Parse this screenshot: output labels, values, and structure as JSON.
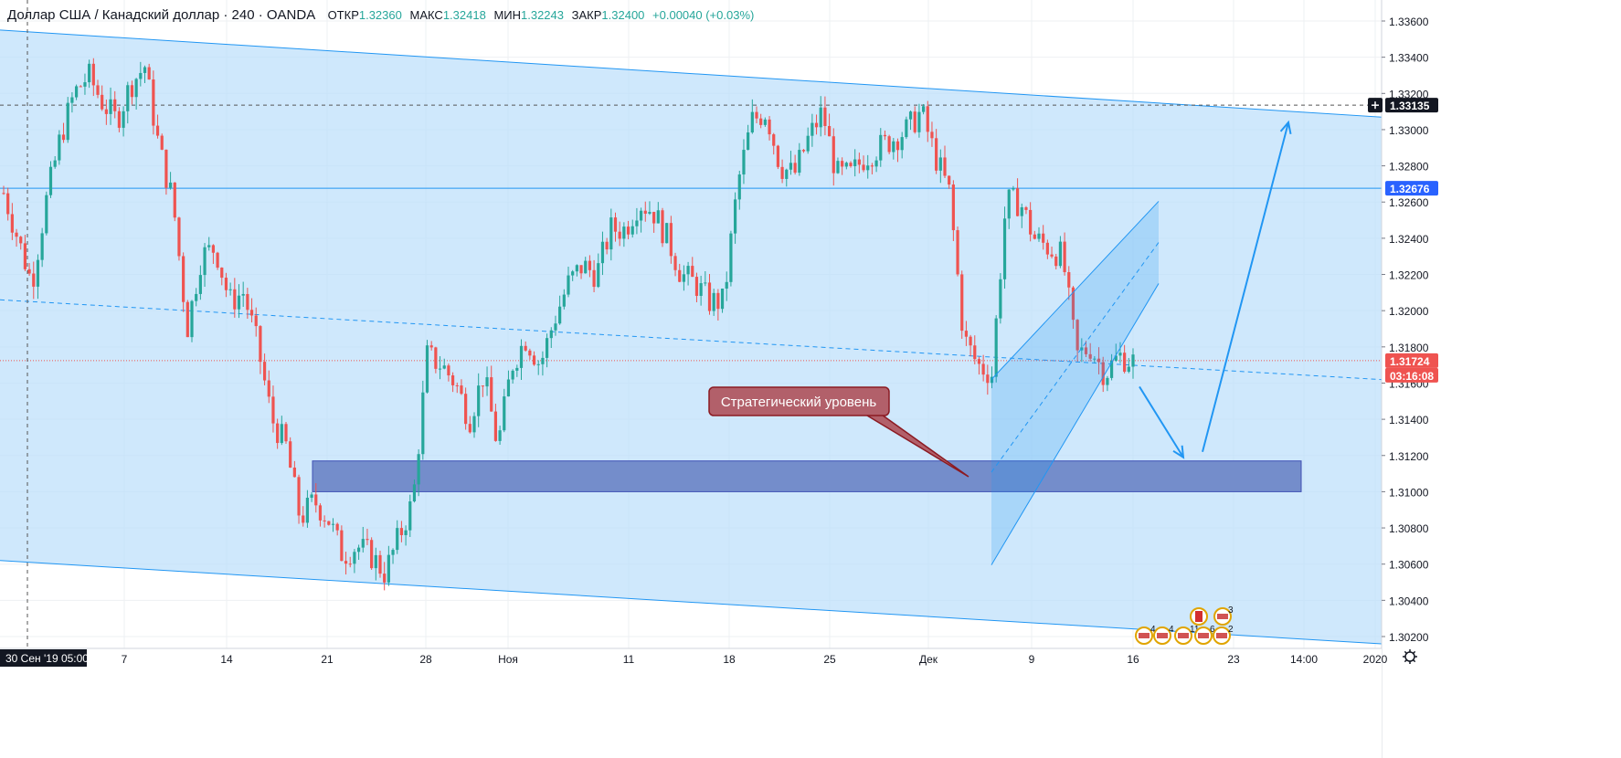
{
  "header": {
    "symbol_title": "Доллар США / Канадский доллар · 240 · OANDA",
    "ohlc": [
      {
        "key": "ОТКР",
        "value": "1.32360"
      },
      {
        "key": "МАКС",
        "value": "1.32418"
      },
      {
        "key": "МИН",
        "value": "1.32243"
      },
      {
        "key": "ЗАКР",
        "value": "1.32400"
      }
    ],
    "change": "+0.00040 (+0.03%)"
  },
  "price_axis": {
    "ticks": [
      "1.33600",
      "1.33400",
      "1.33200",
      "1.33000",
      "1.32800",
      "1.32600",
      "1.32400",
      "1.32200",
      "1.32000",
      "1.31800",
      "1.31600",
      "1.31400",
      "1.31200",
      "1.31000",
      "1.30800",
      "1.30600",
      "1.30400",
      "1.30200"
    ],
    "tags": [
      {
        "value": 1.33135,
        "label": "1.33135",
        "color": "#131722"
      },
      {
        "value": 1.32676,
        "label": "1.32676",
        "color": "#2962ff"
      },
      {
        "value": 1.31724,
        "label": "1.31724",
        "color": "#ef5350"
      }
    ],
    "countdown": "03:16:08",
    "crosshair_icon": "crosshair-plus-icon"
  },
  "time_axis": {
    "labels": [
      {
        "key": "d7",
        "text": "7"
      },
      {
        "key": "d14",
        "text": "14"
      },
      {
        "key": "d21",
        "text": "21"
      },
      {
        "key": "d28",
        "text": "28"
      },
      {
        "key": "nov",
        "text": "Ноя"
      },
      {
        "key": "d11",
        "text": "11"
      },
      {
        "key": "d18",
        "text": "18"
      },
      {
        "key": "d25",
        "text": "25"
      },
      {
        "key": "dec",
        "text": "Дек"
      },
      {
        "key": "d9",
        "text": "9"
      },
      {
        "key": "d16",
        "text": "16"
      },
      {
        "key": "d23",
        "text": "23"
      },
      {
        "key": "t1400",
        "text": "14:00"
      },
      {
        "key": "y2020",
        "text": "2020"
      }
    ],
    "crosshair_label": "30 Сен '19   05:00",
    "settings_icon": "gear-icon"
  },
  "annotation": {
    "text": "Стратегический уровень"
  },
  "events": {
    "counts": [
      "4",
      "4",
      "11",
      "6",
      "2",
      "3"
    ],
    "icons": [
      "us-flag-icon",
      "us-flag-icon",
      "ca-flag-icon",
      "us-flag-icon",
      "us-flag-icon",
      "ca-flag-icon",
      "us-flag-icon"
    ]
  },
  "colors": {
    "up": "#26a69a",
    "down": "#ef5350",
    "channel_fill": "#bbdefb",
    "channel_line": "#2196f3",
    "zone_fill": "#6f88c8",
    "callout_fill": "#b2606a",
    "callout_border": "#8b1a22"
  },
  "chart_data": {
    "type": "candlestick",
    "symbol": "USDCAD",
    "timeframe": "240",
    "ylim": [
      1.3015,
      1.3368
    ],
    "levels": [
      1.33135,
      1.32676,
      1.31724
    ],
    "zone": [
      1.31,
      1.3117
    ],
    "path": [
      [
        "d30s",
        1.3265
      ],
      [
        "d2",
        1.324
      ],
      [
        "d3",
        1.3215
      ],
      [
        "d4",
        1.326
      ],
      [
        "d5",
        1.3295
      ],
      [
        "d6",
        1.332
      ],
      [
        "d7",
        1.333
      ],
      [
        "d8",
        1.3315
      ],
      [
        "d9",
        1.3305
      ],
      [
        "d10",
        1.3325
      ],
      [
        "d11",
        1.3335
      ],
      [
        "d12",
        1.329
      ],
      [
        "d13",
        1.326
      ],
      [
        "d14",
        1.319
      ],
      [
        "d15",
        1.323
      ],
      [
        "d16",
        1.3235
      ],
      [
        "d17",
        1.3205
      ],
      [
        "d18",
        1.321
      ],
      [
        "d19",
        1.318
      ],
      [
        "d20",
        1.314
      ],
      [
        "d21",
        1.3125
      ],
      [
        "d22",
        1.3085
      ],
      [
        "d23",
        1.3095
      ],
      [
        "d24",
        1.3085
      ],
      [
        "d25",
        1.3065
      ],
      [
        "d26",
        1.307
      ],
      [
        "d27",
        1.3065
      ],
      [
        "d28",
        1.3055
      ],
      [
        "d29",
        1.3075
      ],
      [
        "d30",
        1.3095
      ],
      [
        "d31",
        1.3175
      ],
      [
        "d32",
        1.317
      ],
      [
        "d33",
        1.316
      ],
      [
        "d34",
        1.314
      ],
      [
        "d35",
        1.3165
      ],
      [
        "d36",
        1.3125
      ],
      [
        "d37",
        1.317
      ],
      [
        "d38",
        1.3185
      ],
      [
        "d39",
        1.317
      ],
      [
        "d40",
        1.3195
      ],
      [
        "d41",
        1.3215
      ],
      [
        "d42",
        1.3225
      ],
      [
        "d43",
        1.322
      ],
      [
        "d44",
        1.3245
      ],
      [
        "d45",
        1.3245
      ],
      [
        "d46",
        1.326
      ],
      [
        "d47",
        1.3255
      ],
      [
        "d48",
        1.324
      ],
      [
        "d49",
        1.322
      ],
      [
        "d50",
        1.3215
      ],
      [
        "d51",
        1.3205
      ],
      [
        "d52",
        1.3205
      ],
      [
        "d53",
        1.327
      ],
      [
        "d54",
        1.3305
      ],
      [
        "d55",
        1.331
      ],
      [
        "d56",
        1.328
      ],
      [
        "d57",
        1.3275
      ],
      [
        "d58",
        1.3295
      ],
      [
        "d59",
        1.331
      ],
      [
        "d60",
        1.3275
      ],
      [
        "d61",
        1.3275
      ],
      [
        "d62",
        1.3285
      ],
      [
        "d63",
        1.329
      ],
      [
        "d64",
        1.3295
      ],
      [
        "d65",
        1.33
      ],
      [
        "d66",
        1.331
      ],
      [
        "d67",
        1.3285
      ],
      [
        "d68",
        1.3265
      ],
      [
        "d69",
        1.3185
      ],
      [
        "d70",
        1.317
      ],
      [
        "d71",
        1.3165
      ],
      [
        "d72",
        1.326
      ],
      [
        "d73",
        1.326
      ],
      [
        "d74",
        1.324
      ],
      [
        "d75",
        1.3235
      ],
      [
        "d76",
        1.323
      ],
      [
        "d77",
        1.3175
      ],
      [
        "d78",
        1.318
      ],
      [
        "d79",
        1.3165
      ],
      [
        "d80",
        1.3175
      ],
      [
        "d81",
        1.3172
      ]
    ],
    "channel": {
      "upper": [
        [
          0,
          1.3355
        ],
        [
          1510,
          1.3307
        ]
      ],
      "lower": [
        [
          0,
          1.3062
        ],
        [
          1510,
          1.3016
        ]
      ]
    },
    "channel_mid": [
      [
        0,
        1.3206
      ],
      [
        1510,
        1.3162
      ]
    ],
    "small_channel": {
      "upper": [
        [
          1085,
          1.3162
        ],
        [
          1268,
          1.3215
        ]
      ],
      "lower": [
        [
          1085,
          1.311
        ],
        [
          1268,
          1.3163
        ]
      ]
    },
    "arrows": [
      [
        [
          1247,
          1.3158
        ],
        [
          1295,
          1.3119
        ]
      ],
      [
        [
          1316,
          1.3122
        ],
        [
          1410,
          1.3304
        ]
      ]
    ]
  }
}
